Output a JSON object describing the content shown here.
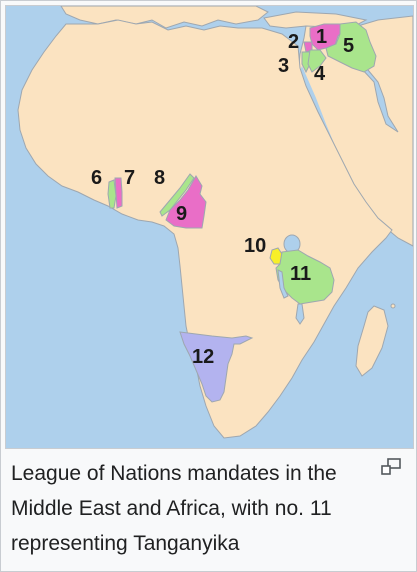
{
  "map": {
    "labels": [
      {
        "id": "1",
        "text": "1"
      },
      {
        "id": "2",
        "text": "2"
      },
      {
        "id": "3",
        "text": "3"
      },
      {
        "id": "4",
        "text": "4"
      },
      {
        "id": "5",
        "text": "5"
      },
      {
        "id": "6",
        "text": "6"
      },
      {
        "id": "7",
        "text": "7"
      },
      {
        "id": "8",
        "text": "8"
      },
      {
        "id": "9",
        "text": "9"
      },
      {
        "id": "10",
        "text": "10"
      },
      {
        "id": "11",
        "text": "11"
      },
      {
        "id": "12",
        "text": "12"
      }
    ],
    "colors": {
      "sea": "#aed0ec",
      "land": "#fbe3c1",
      "border": "#9ea7b0",
      "green": "#a9e58c",
      "pink": "#e96ec7",
      "purple": "#b3b3ef",
      "yellow": "#f7ef28"
    }
  },
  "caption": {
    "text": "League of Nations mandates in the Middle East and Africa, with no. 11 representing Tanganyika"
  },
  "icons": {
    "enlarge": "enlarge-icon"
  }
}
